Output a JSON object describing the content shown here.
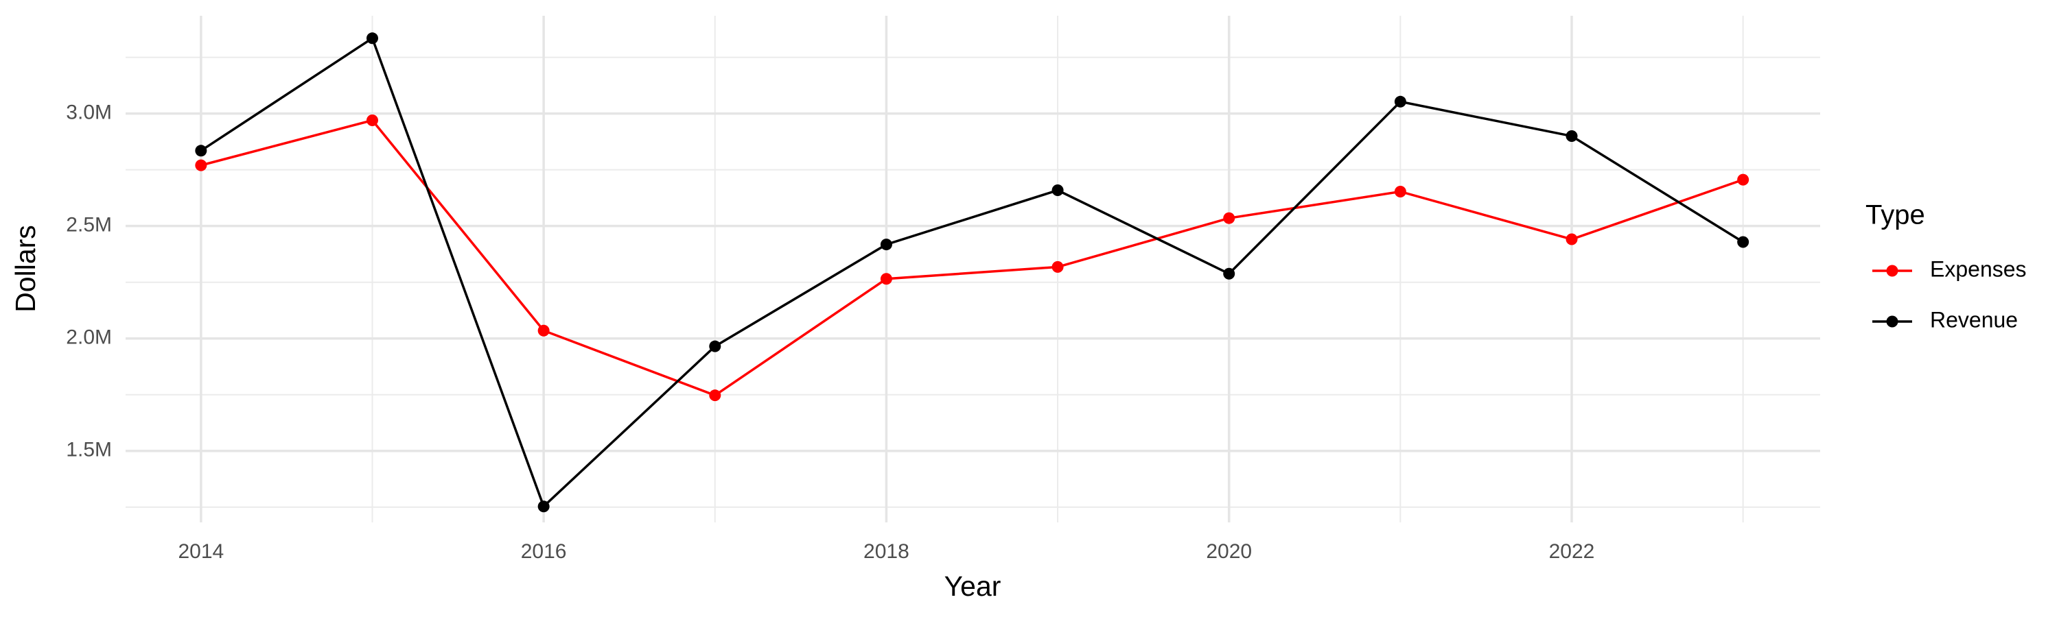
{
  "chart_data": {
    "type": "line",
    "x_label": "Year",
    "y_label": "Dollars",
    "legend_title": "Type",
    "legend_position": "right",
    "x": [
      2014,
      2015,
      2016,
      2017,
      2018,
      2019,
      2020,
      2021,
      2022,
      2023
    ],
    "series": [
      {
        "name": "Expenses",
        "color": "#ff0000",
        "values": [
          2770000,
          2970000,
          2035000,
          1747000,
          2265000,
          2318000,
          2535000,
          2653000,
          2441000,
          2706000
        ]
      },
      {
        "name": "Revenue",
        "color": "#000000",
        "values": [
          2835000,
          3335000,
          1253000,
          1965000,
          2418000,
          2659000,
          2288000,
          3053000,
          2900000,
          2429000
        ]
      }
    ],
    "xlim": [
      2013.56,
      2023.45
    ],
    "xticks": [
      2014,
      2016,
      2018,
      2020,
      2022
    ],
    "ylim": [
      1182000,
      3435000
    ],
    "yticks": [
      {
        "value": 1500000,
        "label": "1.5M"
      },
      {
        "value": 2000000,
        "label": "2.0M"
      },
      {
        "value": 2500000,
        "label": "2.5M"
      },
      {
        "value": 3000000,
        "label": "3.0M"
      }
    ],
    "grid": true
  }
}
